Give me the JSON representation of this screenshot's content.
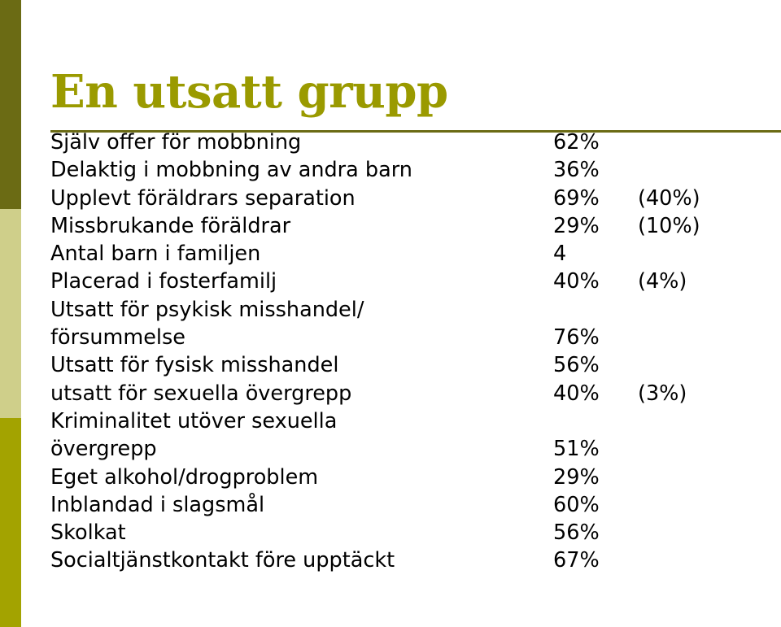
{
  "theme": {
    "title_color": "#9a9a00",
    "rule_color": "#6b6b14",
    "sidebar_colors": [
      "#6b6b14",
      "#cfcf8a",
      "#a3a300"
    ]
  },
  "slide": {
    "title": "En utsatt grupp",
    "rows": [
      {
        "label": "Själv offer för mobbning",
        "value": "62%",
        "ref": ""
      },
      {
        "label": "Delaktig i mobbning av andra barn",
        "value": "36%",
        "ref": ""
      },
      {
        "label": "Upplevt föräldrars separation",
        "value": "69%",
        "ref": "(40%)"
      },
      {
        "label": "Missbrukande föräldrar",
        "value": "29%",
        "ref": "(10%)"
      },
      {
        "label": "Antal barn i familjen",
        "value": "4",
        "ref": ""
      },
      {
        "label": "Placerad i fosterfamilj",
        "value": "40%",
        "ref": "(4%)"
      },
      {
        "label": "Utsatt för psykisk misshandel/",
        "value": "",
        "ref": ""
      },
      {
        "label": "försummelse",
        "value": "76%",
        "ref": ""
      },
      {
        "label": "Utsatt för fysisk misshandel",
        "value": "56%",
        "ref": ""
      },
      {
        "label": "utsatt för sexuella övergrepp",
        "value": "40%",
        "ref": "(3%)"
      },
      {
        "label": "Kriminalitet utöver sexuella",
        "value": "",
        "ref": ""
      },
      {
        "label": "övergrepp",
        "value": "51%",
        "ref": ""
      },
      {
        "label": "Eget alkohol/drogproblem",
        "value": "29%",
        "ref": ""
      },
      {
        "label": "Inblandad i slagsmål",
        "value": "60%",
        "ref": ""
      },
      {
        "label": "Skolkat",
        "value": "56%",
        "ref": ""
      },
      {
        "label": "Socialtjänstkontakt före upptäckt",
        "value": "67%",
        "ref": ""
      }
    ]
  }
}
